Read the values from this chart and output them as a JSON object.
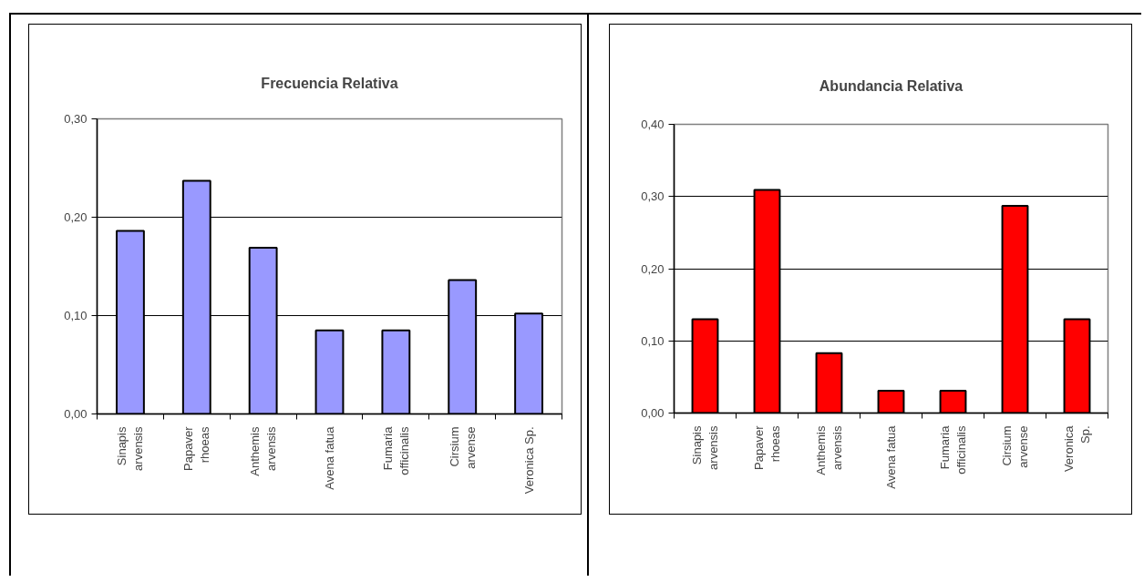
{
  "chart_data": [
    {
      "type": "bar",
      "title": "Frecuencia Relativa",
      "categories": [
        "Sinapis arvensis",
        "Papaver rhoeas",
        "Anthemis arvensis",
        "Avena fatua",
        "Fumaria officinalis",
        "Cirsium arvense",
        "Veronica Sp."
      ],
      "values": [
        0.186,
        0.237,
        0.169,
        0.085,
        0.085,
        0.136,
        0.102
      ],
      "color": "#9999ff",
      "ylim": [
        0,
        0.3
      ],
      "yticks": [
        {
          "value": 0,
          "label": "0,00"
        },
        {
          "value": 0.1,
          "label": "0,10"
        },
        {
          "value": 0.2,
          "label": "0,20"
        },
        {
          "value": 0.3,
          "label": "0,30"
        }
      ],
      "grid": "y"
    },
    {
      "type": "bar",
      "title": "Abundancia Relativa",
      "categories": [
        "Sinapis arvensis",
        "Papaver rhoeas",
        "Anthemis arvensis",
        "Avena fatua",
        "Fumaria officinalis",
        "Cirsium arvense",
        "Veronica Sp."
      ],
      "values": [
        0.13,
        0.309,
        0.083,
        0.031,
        0.031,
        0.287,
        0.13
      ],
      "color": "#ff0000",
      "ylim": [
        0,
        0.4
      ],
      "yticks": [
        {
          "value": 0,
          "label": "0,00"
        },
        {
          "value": 0.1,
          "label": "0,10"
        },
        {
          "value": 0.2,
          "label": "0,20"
        },
        {
          "value": 0.3,
          "label": "0,30"
        },
        {
          "value": 0.4,
          "label": "0,40"
        }
      ],
      "grid": "y"
    }
  ]
}
